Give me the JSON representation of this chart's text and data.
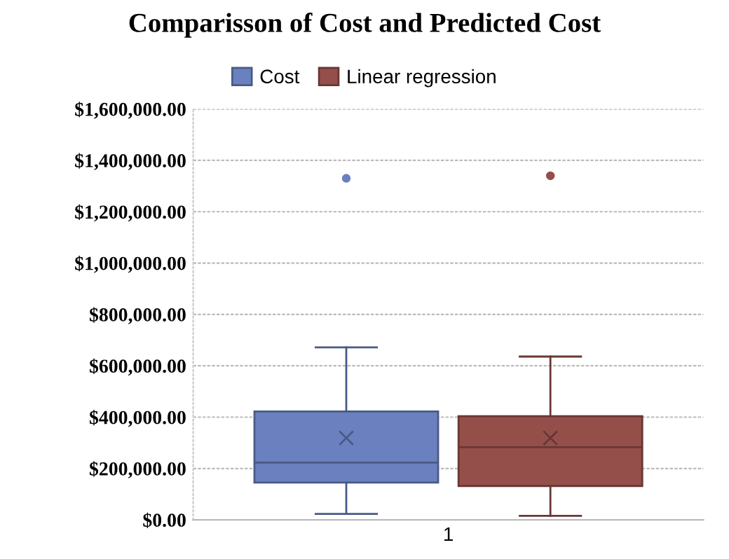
{
  "chart_data": {
    "type": "box",
    "title": "Comparisson of Cost and Predicted Cost",
    "categories": [
      "1"
    ],
    "series": [
      {
        "name": "Cost",
        "color": "#6a80bf",
        "boxes": [
          {
            "low": 23000,
            "q1": 145000,
            "median": 223000,
            "q3": 422000,
            "high": 672000,
            "mean": 319000,
            "outliers": [
              1330000
            ]
          }
        ]
      },
      {
        "name": "Linear regression",
        "color": "#954f4b",
        "boxes": [
          {
            "low": 16000,
            "q1": 132000,
            "median": 283000,
            "q3": 404000,
            "high": 636000,
            "mean": 319000,
            "outliers": [
              1340000
            ]
          }
        ]
      }
    ],
    "ylim": [
      0,
      1600000
    ],
    "yticks": [
      {
        "value": 0,
        "label": "$0.00"
      },
      {
        "value": 200000,
        "label": "$200,000.00"
      },
      {
        "value": 400000,
        "label": "$400,000.00"
      },
      {
        "value": 600000,
        "label": "$600,000.00"
      },
      {
        "value": 800000,
        "label": "$800,000.00"
      },
      {
        "value": 1000000,
        "label": "$1,000,000.00"
      },
      {
        "value": 1200000,
        "label": "$1,200,000.00"
      },
      {
        "value": 1400000,
        "label": "$1,400,000.00"
      },
      {
        "value": 1600000,
        "label": "$1,600,000.00"
      }
    ],
    "grid": "y",
    "legend": "top"
  }
}
